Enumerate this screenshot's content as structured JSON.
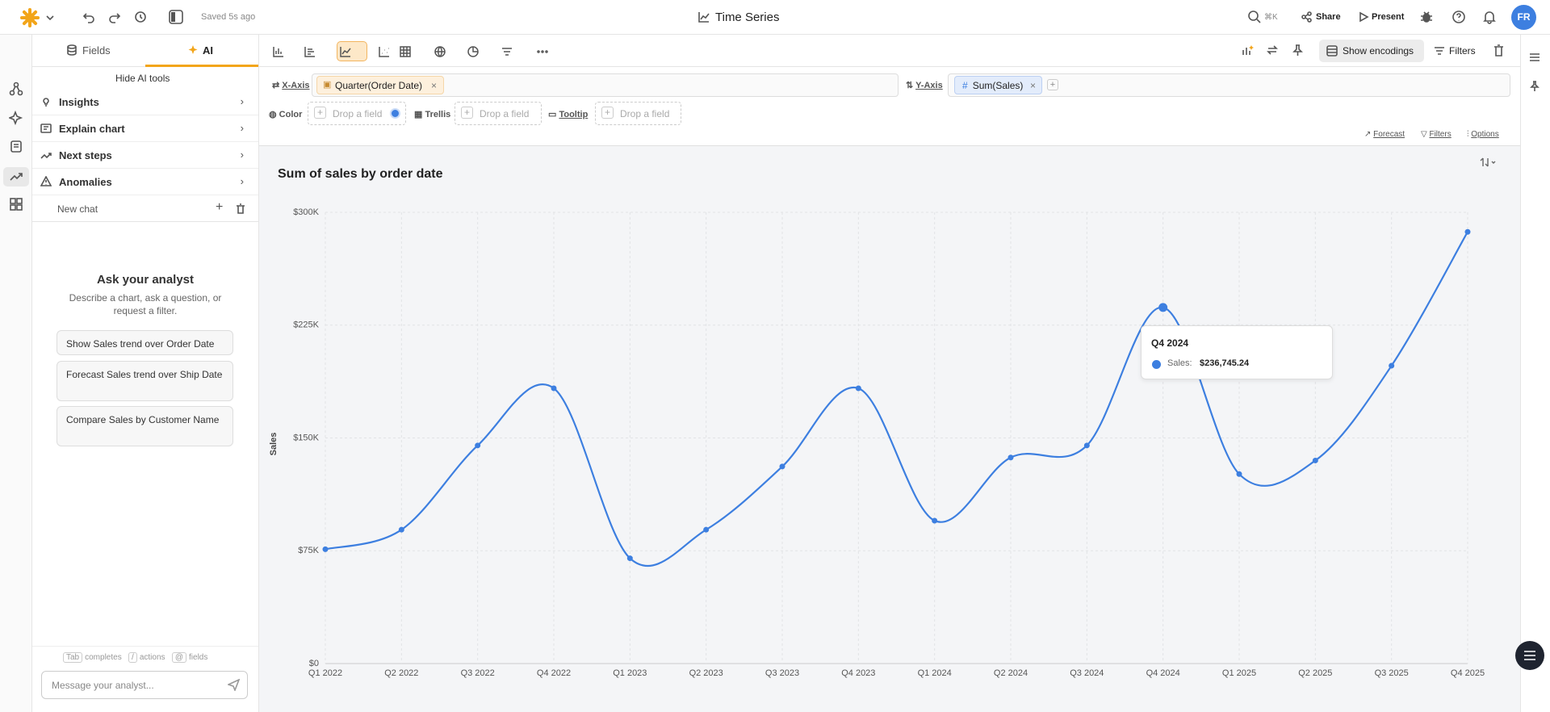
{
  "topbar": {
    "saved": "Saved 5s ago",
    "title": "Time Series",
    "search_shortcut": "⌘K",
    "share": "Share",
    "present": "Present",
    "avatar": "FR"
  },
  "sidebar": {
    "tabs": [
      "Fields",
      "AI"
    ],
    "hide_tools": "Hide AI tools",
    "items": [
      "Insights",
      "Explain chart",
      "Next steps",
      "Anomalies"
    ],
    "new_chat": "New chat",
    "heading": "Ask your analyst",
    "description": "Describe a chart, ask a question, or request a filter.",
    "suggestions": [
      "Show Sales trend over Order Date",
      "Forecast Sales trend over Ship Date",
      "Compare Sales by Customer Name"
    ],
    "hints": [
      {
        "key": "Tab",
        "text": "completes"
      },
      {
        "key": "/",
        "text": "actions"
      },
      {
        "key": "@",
        "text": "fields"
      }
    ],
    "input_placeholder": "Message your analyst..."
  },
  "toolbar": {
    "show_encodings": "Show encodings",
    "filters": "Filters"
  },
  "encodings": {
    "x_axis": "X-Axis",
    "x_field": "Quarter(Order Date)",
    "y_axis": "Y-Axis",
    "y_field_type": "#",
    "y_field": "Sum(Sales)",
    "color": "Color",
    "trellis": "Trellis",
    "tooltip": "Tooltip",
    "drop": [
      "Drop a field",
      "Drop a field",
      "Drop a field"
    ],
    "links": [
      "Forecast",
      "Filters",
      "Options"
    ]
  },
  "chart_data": {
    "type": "line",
    "title": "Sum of sales by order date",
    "y_label": "Sales",
    "categories": [
      "Q1 2022",
      "Q2 2022",
      "Q3 2022",
      "Q4 2022",
      "Q1 2023",
      "Q2 2023",
      "Q3 2023",
      "Q4 2023",
      "Q1 2024",
      "Q2 2024",
      "Q3 2024",
      "Q4 2024",
      "Q1 2025",
      "Q2 2025",
      "Q3 2025",
      "Q4 2025"
    ],
    "series": [
      {
        "name": "Sales",
        "color": "#3d7fe0",
        "values": [
          76000,
          89000,
          145000,
          183000,
          70000,
          89000,
          131000,
          183000,
          95000,
          137000,
          145000,
          236745.24,
          126000,
          135000,
          198000,
          287000
        ]
      }
    ],
    "ylim": [
      0,
      300000
    ],
    "yticks": [
      {
        "value": 0,
        "label": "$0"
      },
      {
        "value": 75000,
        "label": "$75K"
      },
      {
        "value": 150000,
        "label": "$150K"
      },
      {
        "value": 225000,
        "label": "$225K"
      },
      {
        "value": 300000,
        "label": "$300K"
      }
    ],
    "grid": true,
    "tooltip": {
      "label": "Sales:",
      "value_label": "$236,745.24"
    }
  }
}
